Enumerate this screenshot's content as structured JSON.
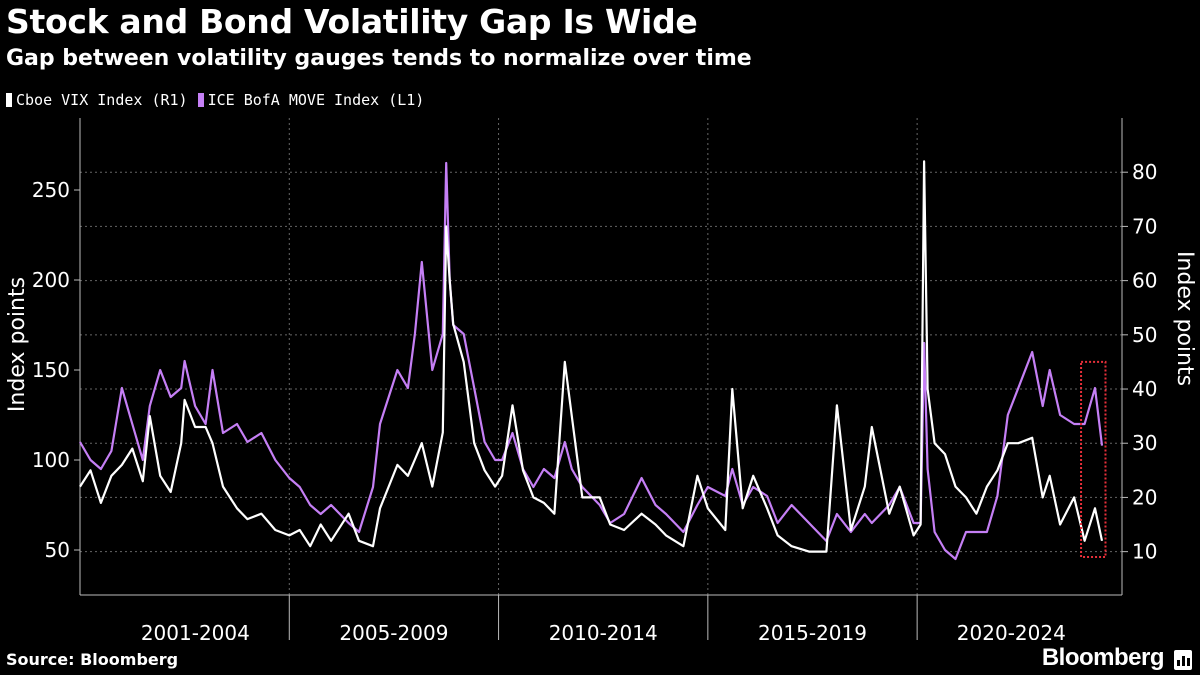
{
  "header": {
    "title": "Stock and Bond Volatility Gap Is Wide",
    "subtitle": "Gap between volatility gauges tends to normalize over time"
  },
  "footer": {
    "source": "Source: Bloomberg",
    "brand": "Bloomberg"
  },
  "chart_data": {
    "type": "line",
    "title": "Stock and Bond Volatility Gap Is Wide",
    "subtitle": "Gap between volatility gauges tends to normalize over time",
    "x_start": "2000-01",
    "x_end": "2024-06",
    "x_tick_labels": [
      "2001-2004",
      "2005-2009",
      "2010-2014",
      "2015-2019",
      "2020-2024"
    ],
    "left_axis": {
      "label": "Index points",
      "ticks": [
        50,
        100,
        150,
        200,
        250
      ],
      "range": [
        25,
        290
      ]
    },
    "right_axis": {
      "label": "Index points",
      "ticks": [
        10,
        20,
        30,
        40,
        50,
        60,
        70,
        80
      ],
      "range": [
        2,
        90
      ]
    },
    "grid": true,
    "legend_position": "top-left",
    "colors": {
      "vix": "#ffffff",
      "move": "#c57ff5",
      "highlight": "#e8303a",
      "grid": "#666666"
    },
    "series": [
      {
        "name": "Cboe VIX Index (R1)",
        "axis": "right",
        "color": "#ffffff",
        "x": [
          "2000-01",
          "2000-04",
          "2000-07",
          "2000-10",
          "2001-01",
          "2001-04",
          "2001-07",
          "2001-09",
          "2001-12",
          "2002-03",
          "2002-06",
          "2002-07",
          "2002-10",
          "2003-01",
          "2003-03",
          "2003-06",
          "2003-10",
          "2004-01",
          "2004-05",
          "2004-09",
          "2005-01",
          "2005-04",
          "2005-07",
          "2005-10",
          "2006-01",
          "2006-06",
          "2006-09",
          "2007-01",
          "2007-03",
          "2007-08",
          "2007-11",
          "2008-01",
          "2008-03",
          "2008-06",
          "2008-09",
          "2008-10",
          "2008-11",
          "2008-12",
          "2009-03",
          "2009-06",
          "2009-09",
          "2009-12",
          "2010-02",
          "2010-05",
          "2010-08",
          "2010-11",
          "2011-02",
          "2011-05",
          "2011-08",
          "2011-10",
          "2012-01",
          "2012-06",
          "2012-09",
          "2013-01",
          "2013-06",
          "2013-10",
          "2014-01",
          "2014-06",
          "2014-10",
          "2015-01",
          "2015-06",
          "2015-08",
          "2015-11",
          "2016-02",
          "2016-06",
          "2016-09",
          "2017-01",
          "2017-06",
          "2017-11",
          "2018-02",
          "2018-06",
          "2018-10",
          "2018-12",
          "2019-05",
          "2019-08",
          "2019-12",
          "2020-02",
          "2020-03",
          "2020-04",
          "2020-06",
          "2020-09",
          "2020-12",
          "2021-03",
          "2021-06",
          "2021-09",
          "2021-12",
          "2022-03",
          "2022-06",
          "2022-10",
          "2023-01",
          "2023-03",
          "2023-06",
          "2023-10",
          "2024-01",
          "2024-04",
          "2024-06"
        ],
        "values": [
          22,
          25,
          19,
          24,
          26,
          29,
          23,
          35,
          24,
          21,
          30,
          38,
          33,
          33,
          30,
          22,
          18,
          16,
          17,
          14,
          13,
          14,
          11,
          15,
          12,
          17,
          12,
          11,
          18,
          26,
          24,
          27,
          30,
          22,
          32,
          70,
          60,
          52,
          45,
          30,
          25,
          22,
          24,
          37,
          25,
          20,
          19,
          17,
          45,
          35,
          20,
          20,
          15,
          14,
          17,
          15,
          13,
          11,
          24,
          18,
          14,
          40,
          18,
          24,
          18,
          13,
          11,
          10,
          10,
          37,
          14,
          22,
          33,
          17,
          22,
          13,
          15,
          82,
          40,
          30,
          28,
          22,
          20,
          17,
          22,
          25,
          30,
          30,
          31,
          20,
          24,
          15,
          20,
          12,
          18,
          12
        ]
      },
      {
        "name": "ICE BofA MOVE Index (L1)",
        "axis": "left",
        "color": "#c57ff5",
        "x": [
          "2000-01",
          "2000-04",
          "2000-07",
          "2000-10",
          "2001-01",
          "2001-04",
          "2001-07",
          "2001-09",
          "2001-12",
          "2002-03",
          "2002-06",
          "2002-07",
          "2002-10",
          "2003-01",
          "2003-03",
          "2003-06",
          "2003-10",
          "2004-01",
          "2004-05",
          "2004-09",
          "2005-01",
          "2005-04",
          "2005-07",
          "2005-10",
          "2006-01",
          "2006-06",
          "2006-09",
          "2007-01",
          "2007-03",
          "2007-08",
          "2007-11",
          "2008-01",
          "2008-03",
          "2008-06",
          "2008-09",
          "2008-10",
          "2008-11",
          "2008-12",
          "2009-03",
          "2009-06",
          "2009-09",
          "2009-12",
          "2010-02",
          "2010-05",
          "2010-08",
          "2010-11",
          "2011-02",
          "2011-05",
          "2011-08",
          "2011-10",
          "2012-01",
          "2012-06",
          "2012-09",
          "2013-01",
          "2013-06",
          "2013-10",
          "2014-01",
          "2014-06",
          "2014-10",
          "2015-01",
          "2015-06",
          "2015-08",
          "2015-11",
          "2016-02",
          "2016-06",
          "2016-09",
          "2017-01",
          "2017-06",
          "2017-11",
          "2018-02",
          "2018-06",
          "2018-10",
          "2018-12",
          "2019-05",
          "2019-08",
          "2019-12",
          "2020-02",
          "2020-03",
          "2020-04",
          "2020-06",
          "2020-09",
          "2020-12",
          "2021-03",
          "2021-06",
          "2021-09",
          "2021-12",
          "2022-03",
          "2022-06",
          "2022-10",
          "2023-01",
          "2023-03",
          "2023-06",
          "2023-10",
          "2024-01",
          "2024-04",
          "2024-06"
        ],
        "values": [
          110,
          100,
          95,
          105,
          140,
          120,
          100,
          130,
          150,
          135,
          140,
          155,
          130,
          120,
          150,
          115,
          120,
          110,
          115,
          100,
          90,
          85,
          75,
          70,
          75,
          65,
          60,
          85,
          120,
          150,
          140,
          170,
          210,
          150,
          170,
          265,
          200,
          175,
          170,
          140,
          110,
          100,
          100,
          115,
          95,
          85,
          95,
          90,
          110,
          95,
          85,
          75,
          65,
          70,
          90,
          75,
          70,
          60,
          75,
          85,
          80,
          95,
          75,
          85,
          80,
          65,
          75,
          65,
          55,
          70,
          60,
          70,
          65,
          75,
          85,
          65,
          65,
          165,
          95,
          60,
          50,
          45,
          60,
          60,
          60,
          80,
          125,
          140,
          160,
          130,
          150,
          125,
          120,
          120,
          140,
          108
        ]
      }
    ],
    "highlight_box": {
      "x_range": [
        "2023-12",
        "2024-07"
      ],
      "right_axis_range": [
        9,
        45
      ]
    }
  }
}
